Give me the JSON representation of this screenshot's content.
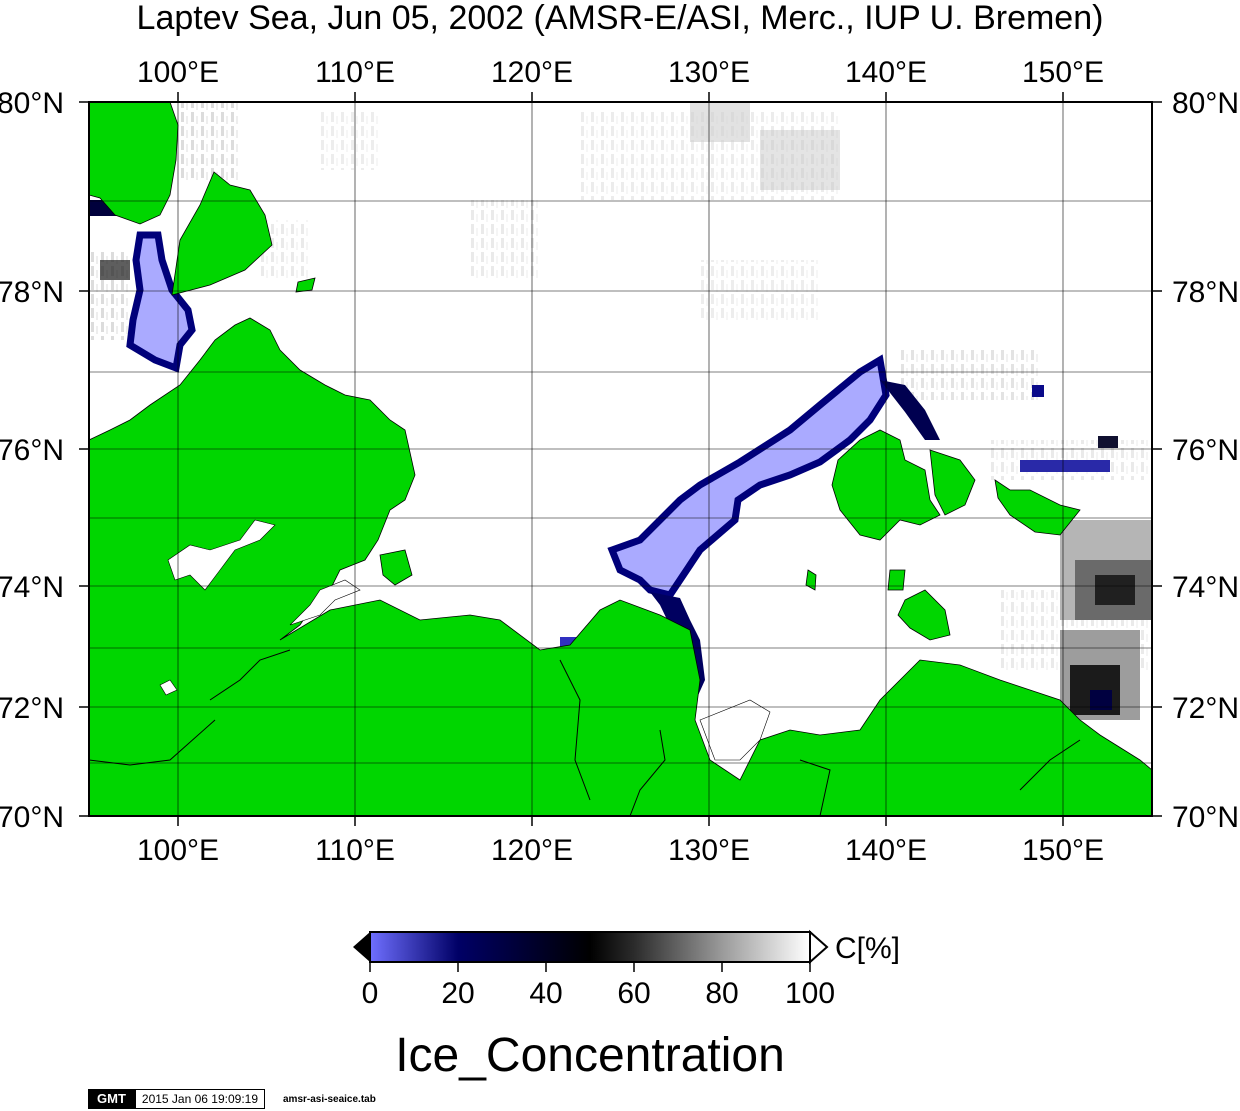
{
  "map": {
    "title": "Laptev Sea, Jun 05, 2002 (AMSR-E/ASI, Merc., IUP U. Bremen)",
    "lon_labels": [
      "100°E",
      "110°E",
      "120°E",
      "130°E",
      "140°E",
      "150°E"
    ],
    "lat_labels": [
      "80°N",
      "78°N",
      "76°N",
      "74°N",
      "72°N",
      "70°N"
    ],
    "colors": {
      "land": "#00d600",
      "ocean": "#ffffff",
      "ice_low": "#8c8cff",
      "ice_edge": "#00007a",
      "frame": "#000000"
    }
  },
  "legend": {
    "ticks": [
      "0",
      "20",
      "40",
      "60",
      "80",
      "100"
    ],
    "unit": "C[%]",
    "title": "Ice_Concentration",
    "gradient_stops": [
      "#6f6fff",
      "#000066",
      "#000000",
      "#555555",
      "#bbbbbb",
      "#ffffff"
    ]
  },
  "footer": {
    "logo": "GMT",
    "timestamp": "2015 Jan 06 19:09:19",
    "filename": "amsr-asi-seaice.tab"
  }
}
